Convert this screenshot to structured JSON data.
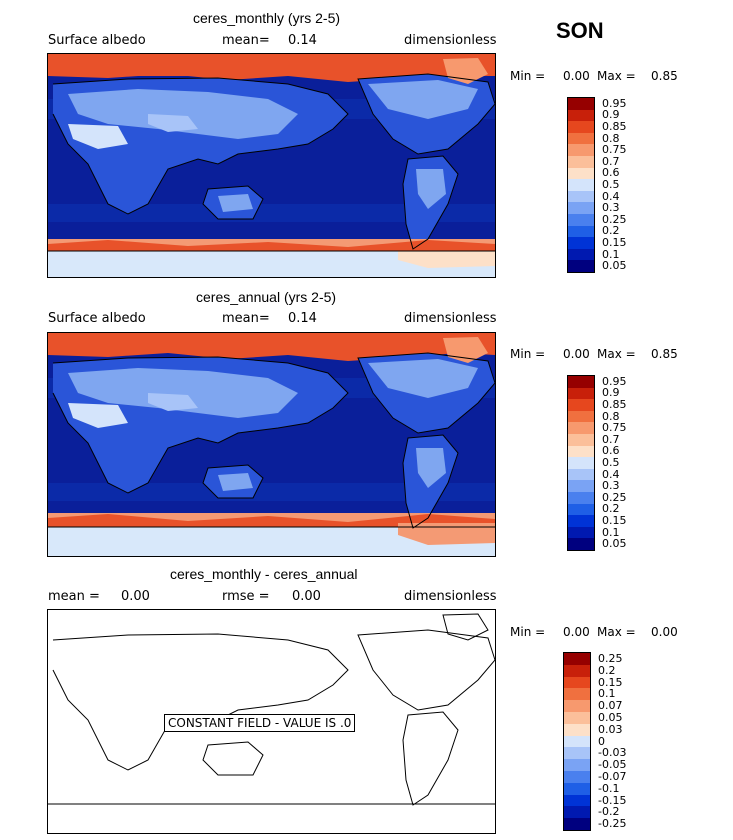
{
  "season": "SON",
  "panels": [
    {
      "title": "ceres_monthly (yrs 2-5)",
      "left_label": "Surface albedo",
      "mean_label": "mean=",
      "mean_value": "0.14",
      "units": "dimensionless",
      "min_label": "Min =",
      "min_value": "0.00",
      "max_label": "Max =",
      "max_value": "0.85",
      "colorbar_labels": [
        "0.95",
        "0.9",
        "0.85",
        "0.8",
        "0.75",
        "0.7",
        "0.6",
        "0.5",
        "0.4",
        "0.3",
        "0.25",
        "0.2",
        "0.15",
        "0.1",
        "0.05"
      ]
    },
    {
      "title": "ceres_annual (yrs 2-5)",
      "left_label": "Surface albedo",
      "mean_label": "mean=",
      "mean_value": "0.14",
      "units": "dimensionless",
      "min_label": "Min =",
      "min_value": "0.00",
      "max_label": "Max =",
      "max_value": "0.85",
      "colorbar_labels": [
        "0.95",
        "0.9",
        "0.85",
        "0.8",
        "0.75",
        "0.7",
        "0.6",
        "0.5",
        "0.4",
        "0.3",
        "0.25",
        "0.2",
        "0.15",
        "0.1",
        "0.05"
      ]
    },
    {
      "title": "ceres_monthly - ceres_annual",
      "left_label": "mean =",
      "left_value": "0.00",
      "mean_label": "rmse =",
      "mean_value": "0.00",
      "units": "dimensionless",
      "min_label": "Min =",
      "min_value": "0.00",
      "max_label": "Max =",
      "max_value": "0.00",
      "constant_note": "CONSTANT FIELD - VALUE IS .0",
      "colorbar_labels": [
        "0.25",
        "0.2",
        "0.15",
        "0.1",
        "0.07",
        "0.05",
        "0.03",
        "0",
        "-0.03",
        "-0.05",
        "-0.07",
        "-0.1",
        "-0.15",
        "-0.2",
        "-0.25"
      ]
    }
  ],
  "colors": {
    "albedo_scale": [
      "#00007f",
      "#0019b0",
      "#0033d6",
      "#1f5fe6",
      "#4a80ee",
      "#7aa3f4",
      "#a8c4f8",
      "#d4e4fb",
      "#fde0c8",
      "#fbbf9a",
      "#f7996e",
      "#f0703f",
      "#e6471e",
      "#c8200a",
      "#960000"
    ],
    "ocean": "#0a1f9a",
    "land_low": "#2a55d8",
    "land_mid": "#7fa6f0",
    "ice": "#e8522a",
    "ice_light": "#f49a74",
    "ant_pale": "#d8e8fa"
  }
}
